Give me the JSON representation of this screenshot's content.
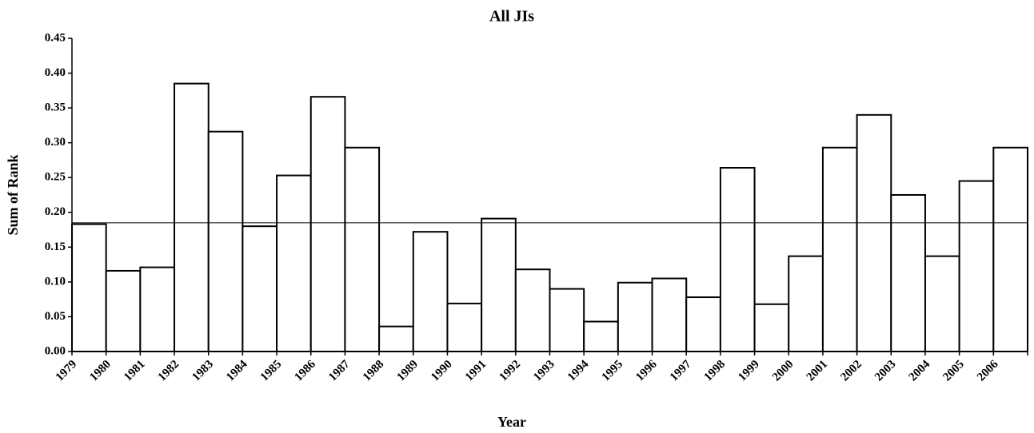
{
  "chart_data": {
    "type": "bar",
    "title": "All JIs",
    "x_label": "Year",
    "y_label": "Sum of Rank",
    "categories": [
      "1979",
      "1980",
      "1981",
      "1982",
      "1983",
      "1984",
      "1985",
      "1986",
      "1987",
      "1988",
      "1989",
      "1990",
      "1991",
      "1992",
      "1993",
      "1994",
      "1995",
      "1996",
      "1997",
      "1998",
      "1999",
      "2000",
      "2001",
      "2002",
      "2003",
      "2004",
      "2005",
      "2006"
    ],
    "values": [
      0.183,
      0.116,
      0.121,
      0.385,
      0.316,
      0.18,
      0.253,
      0.366,
      0.293,
      0.036,
      0.172,
      0.069,
      0.191,
      0.118,
      0.09,
      0.043,
      0.099,
      0.105,
      0.078,
      0.264,
      0.068,
      0.137,
      0.293,
      0.34,
      0.225,
      0.137,
      0.245,
      0.293
    ],
    "color": "#ffffff",
    "edge_color": "#000000",
    "hline": 0.185,
    "ylim": [
      0,
      0.45
    ],
    "yticks": [
      {
        "value": 0,
        "label": "0.00"
      },
      {
        "value": 0.05,
        "label": "0.05"
      },
      {
        "value": 0.1,
        "label": "0.10"
      },
      {
        "value": 0.15,
        "label": "0.15"
      },
      {
        "value": 0.2,
        "label": "0.20"
      },
      {
        "value": 0.25,
        "label": "0.25"
      },
      {
        "value": 0.3,
        "label": "0.30"
      },
      {
        "value": 0.35,
        "label": "0.35"
      },
      {
        "value": 0.4,
        "label": "0.40"
      },
      {
        "value": 0.45,
        "label": "0.45"
      }
    ],
    "grid": false
  }
}
